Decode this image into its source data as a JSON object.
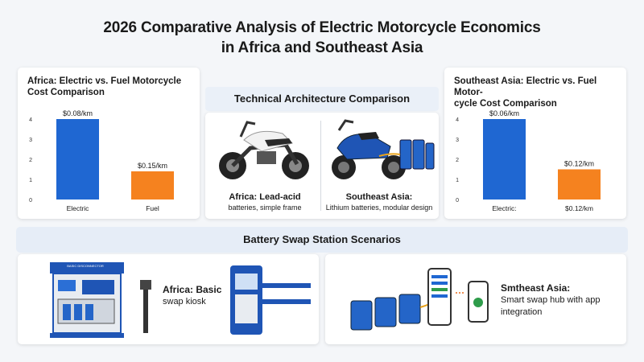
{
  "page_title_line1": "2026 Comparative Analysis of Electric Motorcycle Economics",
  "page_title_line2": "in Africa and Southeast Asia",
  "chart_data": [
    {
      "type": "bar",
      "title": "Africa: Electric vs. Fuel Motorcycle Cost Comparison",
      "categories": [
        "Electric",
        "Fuel"
      ],
      "values": [
        4,
        1.4
      ],
      "data_labels": [
        "$0.08/km",
        "$0.15/km"
      ],
      "ylim": [
        0,
        4
      ],
      "yticks": [
        0,
        1,
        2,
        3,
        4
      ],
      "colors": [
        "#1f67d2",
        "#f5821f"
      ],
      "grid": false
    },
    {
      "type": "bar",
      "title": "Southeast Asia: Electric vs. Fuel Motorcycle Cost Comparison",
      "title_lines": [
        "Southeast Asia: Electric vs. Fuel Motor-",
        "cycle Cost Comparison"
      ],
      "categories": [
        "Electric:",
        "$0.12/km"
      ],
      "values": [
        4,
        1.5
      ],
      "data_labels": [
        "$0.06/km",
        "$0.12/km"
      ],
      "ylim": [
        0,
        4
      ],
      "yticks": [
        0,
        1,
        2,
        3,
        4
      ],
      "colors": [
        "#1f67d2",
        "#f5821f"
      ],
      "grid": false
    }
  ],
  "architecture": {
    "heading": "Technical Architecture Comparison",
    "africa_caption_1": "Africa: Lead-acid",
    "africa_caption_2": "batteries, simple frame",
    "sea_caption_1": "Southeast Asia:",
    "sea_caption_2": "Lithium batteries, modular design"
  },
  "swap": {
    "heading": "Battery Swap Station Scenarios",
    "africa_1": "Africa: Basic",
    "africa_2": "swap kiosk",
    "kiosk_sign": "BASIC DISCONNECTOR",
    "sea_1": "Smtheast Asia:",
    "sea_2": "Smart swap hub with app",
    "sea_3": "integration"
  },
  "colors": {
    "electric": "#1f67d2",
    "fuel": "#f5821f",
    "band": "#e6edf7"
  }
}
